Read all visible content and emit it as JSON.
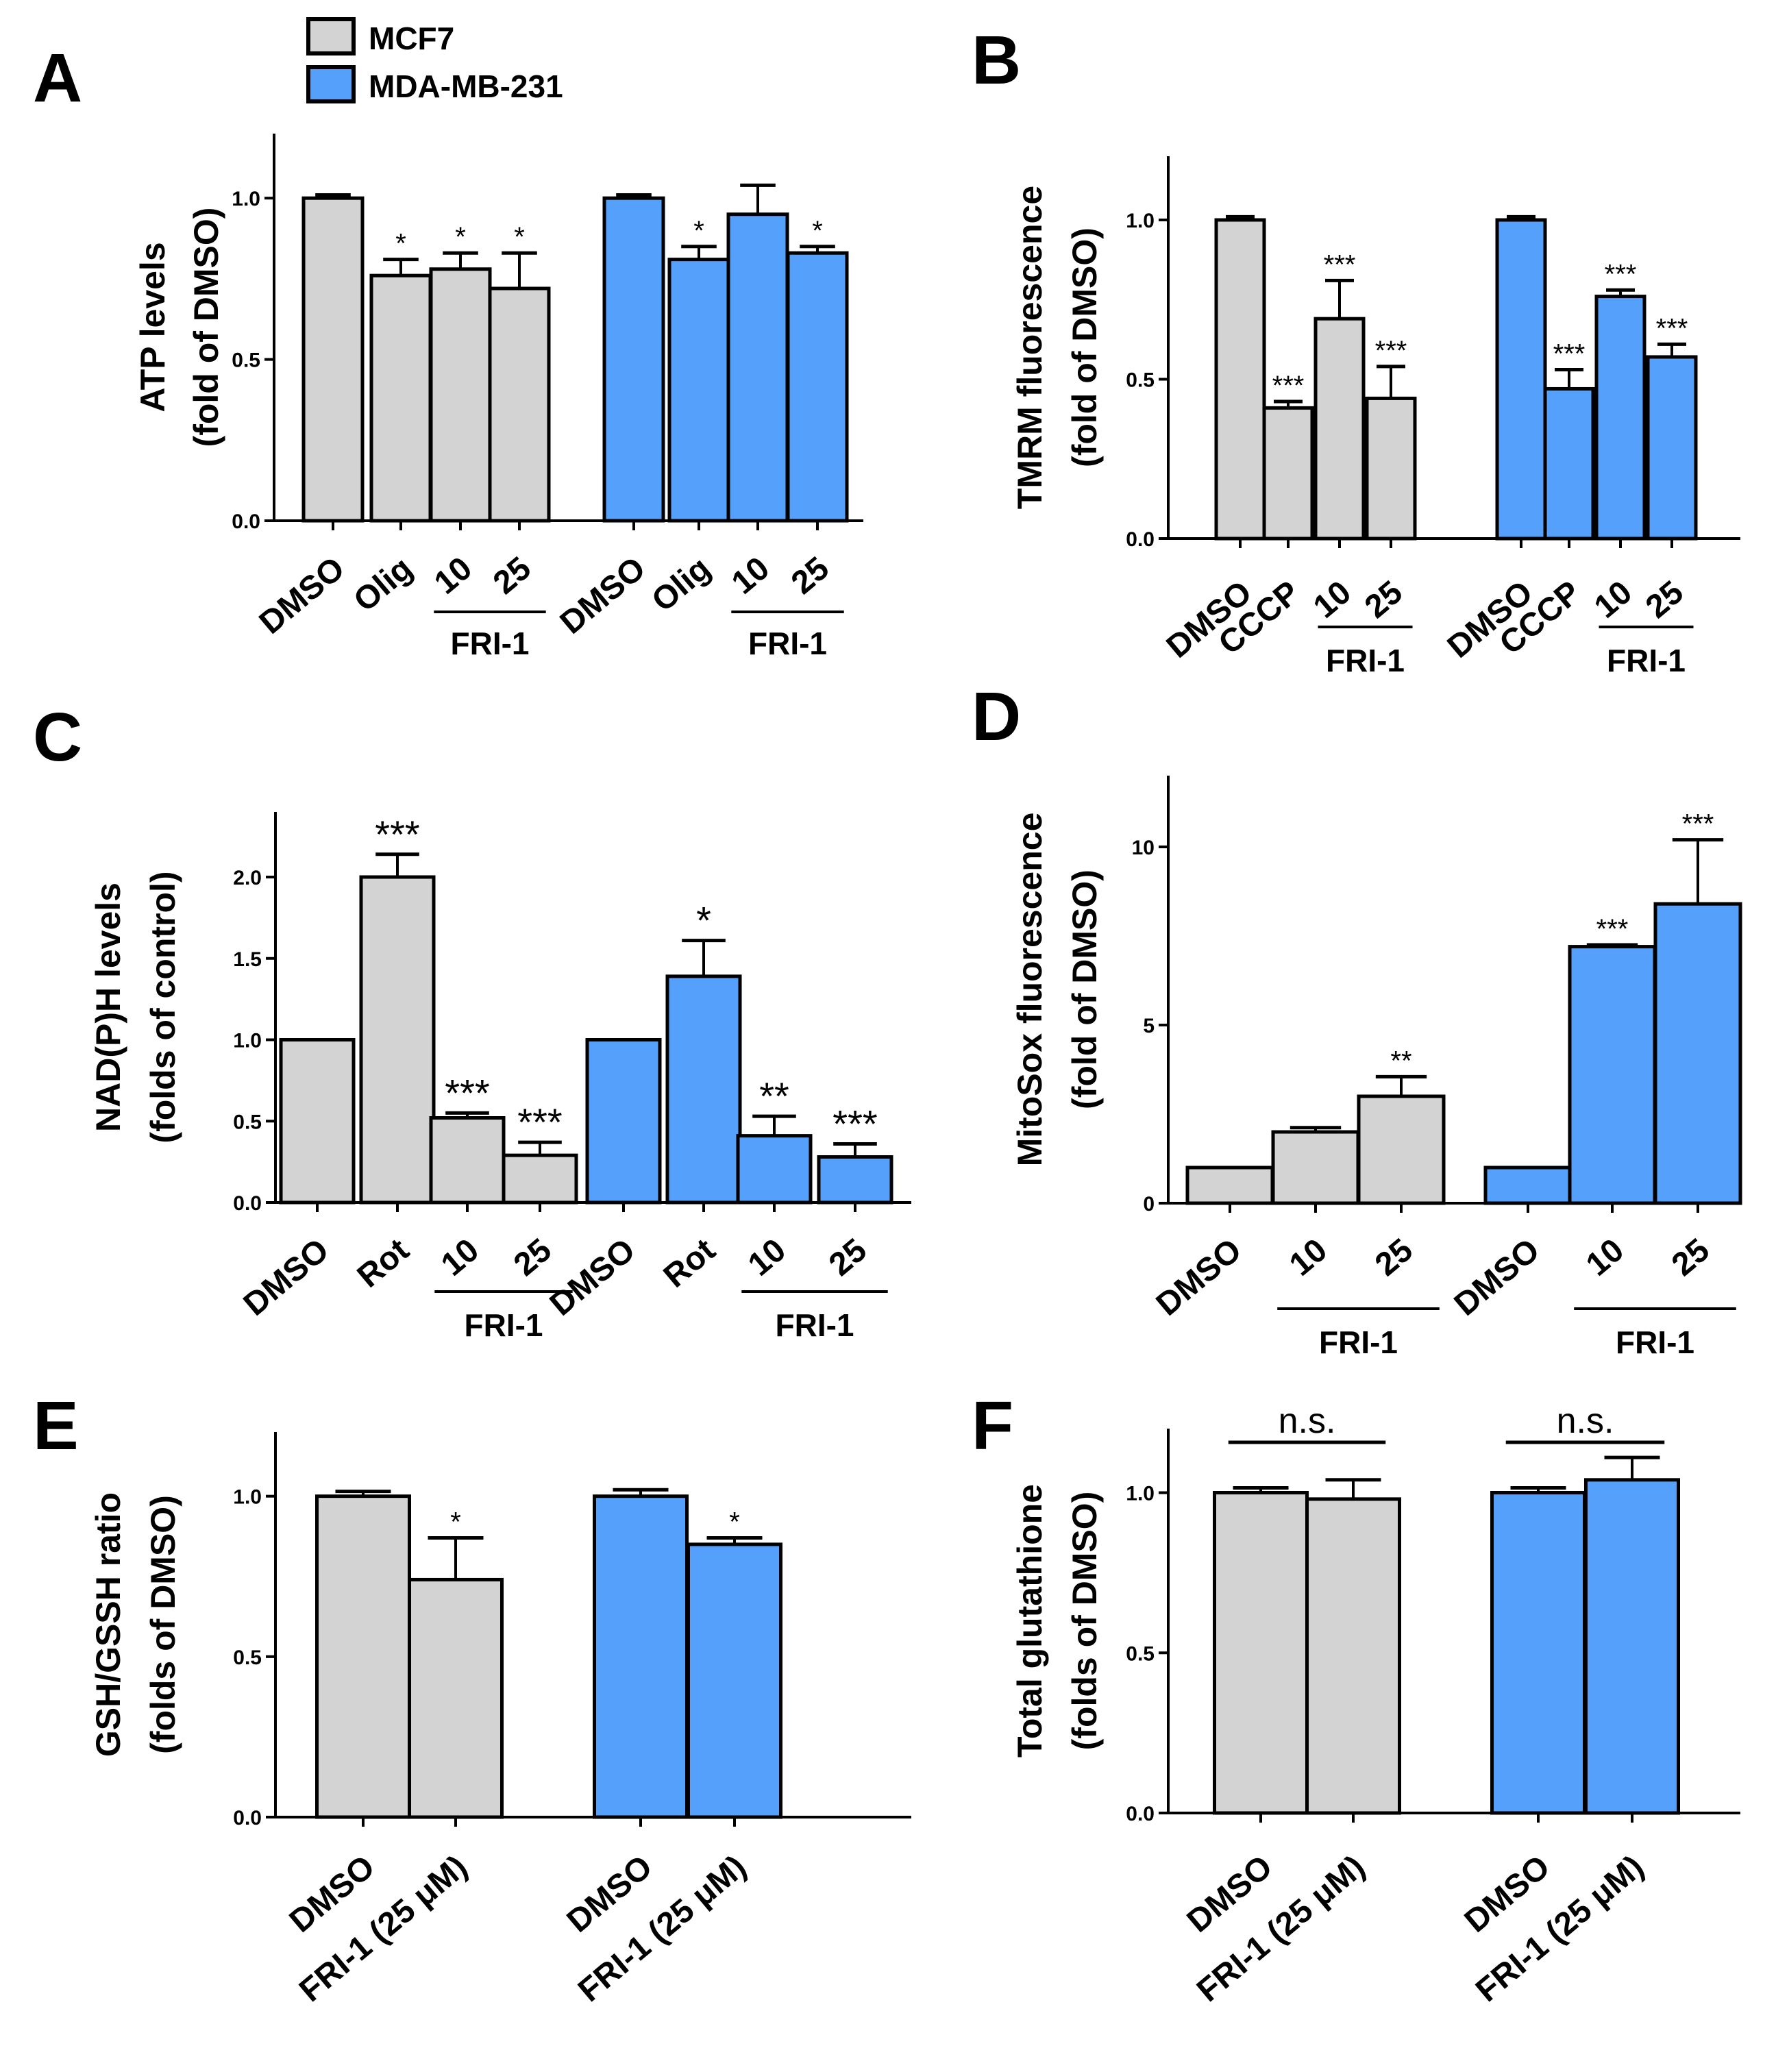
{
  "legend": {
    "entries": [
      {
        "name": "MCF7",
        "color": "#d3d3d3"
      },
      {
        "name": "MDA-MB-231",
        "color": "#55a0fb"
      }
    ]
  },
  "chart_data": [
    {
      "panel": "A",
      "type": "bar",
      "ylabel": [
        "ATP levels",
        "(fold of DMSO)"
      ],
      "ylim": [
        0,
        1.2
      ],
      "yticks": [
        "0.0",
        "0.5",
        "1.0"
      ],
      "ytick_values": [
        0,
        0.5,
        1.0
      ],
      "categories": [
        "DMSO",
        "Olig",
        "10",
        "25",
        "DMSO",
        "Olig",
        "10",
        "25"
      ],
      "values": [
        1.0,
        0.76,
        0.78,
        0.72,
        1.0,
        0.81,
        0.95,
        0.83
      ],
      "errors": [
        0.01,
        0.05,
        0.05,
        0.11,
        0.01,
        0.04,
        0.09,
        0.02
      ],
      "sig": [
        "",
        "*",
        "*",
        "*",
        "",
        "*",
        "",
        "*"
      ],
      "series": [
        "MCF7",
        "MCF7",
        "MCF7",
        "MCF7",
        "MDA-MB-231",
        "MDA-MB-231",
        "MDA-MB-231",
        "MDA-MB-231"
      ],
      "group_labels": [
        {
          "label": "FRI-1",
          "from": 2,
          "to": 3
        },
        {
          "label": "FRI-1",
          "from": 6,
          "to": 7
        }
      ]
    },
    {
      "panel": "B",
      "type": "bar",
      "ylabel": [
        "TMRM fluorescence",
        "(fold of DMSO)"
      ],
      "ylim": [
        0,
        1.2
      ],
      "yticks": [
        "0.0",
        "0.5",
        "1.0"
      ],
      "ytick_values": [
        0,
        0.5,
        1.0
      ],
      "categories": [
        "DMSO",
        "CCCP",
        "10",
        "25",
        "DMSO",
        "CCCP",
        "10",
        "25"
      ],
      "values": [
        1.0,
        0.41,
        0.69,
        0.44,
        1.0,
        0.47,
        0.76,
        0.57
      ],
      "errors": [
        0.01,
        0.02,
        0.12,
        0.1,
        0.01,
        0.06,
        0.02,
        0.04
      ],
      "sig": [
        "",
        "***",
        "***",
        "***",
        "",
        "***",
        "***",
        "***"
      ],
      "series": [
        "MCF7",
        "MCF7",
        "MCF7",
        "MCF7",
        "MDA-MB-231",
        "MDA-MB-231",
        "MDA-MB-231",
        "MDA-MB-231"
      ],
      "group_labels": [
        {
          "label": "FRI-1",
          "from": 2,
          "to": 3
        },
        {
          "label": "FRI-1",
          "from": 6,
          "to": 7
        }
      ]
    },
    {
      "panel": "C",
      "type": "bar",
      "ylabel": [
        "NAD(P)H levels",
        "(folds of control)"
      ],
      "ylim": [
        0,
        2.4
      ],
      "yticks": [
        "0.0",
        "0.5",
        "1.0",
        "1.5",
        "2.0"
      ],
      "ytick_values": [
        0,
        0.5,
        1.0,
        1.5,
        2.0
      ],
      "categories": [
        "DMSO",
        "Rot",
        "10",
        "25",
        "DMSO",
        "Rot",
        "10",
        "25"
      ],
      "values": [
        1.0,
        2.0,
        0.52,
        0.29,
        1.0,
        1.39,
        0.41,
        0.28
      ],
      "errors": [
        0.0,
        0.14,
        0.03,
        0.08,
        0.0,
        0.22,
        0.12,
        0.08
      ],
      "sig": [
        "",
        "***",
        "***",
        "***",
        "",
        "*",
        "**",
        "***"
      ],
      "series": [
        "MCF7",
        "MCF7",
        "MCF7",
        "MCF7",
        "MDA-MB-231",
        "MDA-MB-231",
        "MDA-MB-231",
        "MDA-MB-231"
      ],
      "group_labels": [
        {
          "label": "FRI-1",
          "from": 2,
          "to": 3
        },
        {
          "label": "FRI-1",
          "from": 6,
          "to": 7
        }
      ]
    },
    {
      "panel": "D",
      "type": "bar",
      "ylabel": [
        "MitoSox fluorescence",
        "(fold of DMSO)"
      ],
      "ylim": [
        0,
        12
      ],
      "yticks": [
        "0",
        "5",
        "10"
      ],
      "ytick_values": [
        0,
        5,
        10
      ],
      "categories": [
        "DMSO",
        "10",
        "25",
        "DMSO",
        "10",
        "25"
      ],
      "values": [
        1.0,
        2.0,
        3.0,
        1.0,
        7.2,
        8.4
      ],
      "errors": [
        0.0,
        0.12,
        0.55,
        0.0,
        0.05,
        1.8
      ],
      "sig": [
        "",
        "",
        "**",
        "",
        "***",
        "***"
      ],
      "series": [
        "MCF7",
        "MCF7",
        "MCF7",
        "MDA-MB-231",
        "MDA-MB-231",
        "MDA-MB-231"
      ],
      "group_labels": [
        {
          "label": "FRI-1",
          "from": 1,
          "to": 2
        },
        {
          "label": "FRI-1",
          "from": 4,
          "to": 5
        }
      ]
    },
    {
      "panel": "E",
      "type": "bar",
      "ylabel": [
        "GSH/GSSH ratio",
        "(folds of DMSO)"
      ],
      "ylim": [
        0,
        1.2
      ],
      "yticks": [
        "0.0",
        "0.5",
        "1.0"
      ],
      "ytick_values": [
        0,
        0.5,
        1.0
      ],
      "categories": [
        "DMSO",
        "FRI-1 (25 μM)",
        "DMSO",
        "FRI-1 (25 μM)"
      ],
      "values": [
        1.0,
        0.74,
        1.0,
        0.85
      ],
      "errors": [
        0.015,
        0.13,
        0.02,
        0.02
      ],
      "sig": [
        "",
        "*",
        "",
        "*"
      ],
      "series": [
        "MCF7",
        "MCF7",
        "MDA-MB-231",
        "MDA-MB-231"
      ],
      "group_labels": []
    },
    {
      "panel": "F",
      "type": "bar",
      "ylabel": [
        "Total glutathione",
        "(folds of DMSO)"
      ],
      "ylim": [
        0,
        1.2
      ],
      "yticks": [
        "0.0",
        "0.5",
        "1.0"
      ],
      "ytick_values": [
        0,
        0.5,
        1.0
      ],
      "categories": [
        "DMSO",
        "FRI-1 (25 μM)",
        "DMSO",
        "FRI-1 (25 μM)"
      ],
      "values": [
        1.0,
        0.98,
        1.0,
        1.04
      ],
      "errors": [
        0.015,
        0.06,
        0.015,
        0.07
      ],
      "sig": [
        "",
        "",
        "",
        ""
      ],
      "series": [
        "MCF7",
        "MCF7",
        "MDA-MB-231",
        "MDA-MB-231"
      ],
      "group_labels": [],
      "brackets": [
        {
          "label": "n.s.",
          "from": 0,
          "to": 1
        },
        {
          "label": "n.s.",
          "from": 2,
          "to": 3
        }
      ]
    }
  ]
}
